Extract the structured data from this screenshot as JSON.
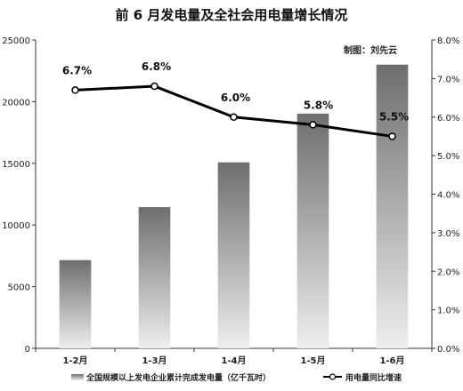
{
  "chart_data": {
    "type": "bar",
    "title": "前 6 月发电量及全社会用电量增长情况",
    "credit": "制图：刘先云",
    "categories": [
      "1-2月",
      "1-3月",
      "1-4月",
      "1-5月",
      "1-6月"
    ],
    "series": [
      {
        "name": "全国规模以上发电企业累计完成发电量（亿千瓦时）",
        "type": "bar",
        "axis": "left",
        "values": [
          7150,
          11450,
          15080,
          19030,
          23000
        ]
      },
      {
        "name": "用电量同比增速",
        "type": "line",
        "axis": "right",
        "values": [
          6.7,
          6.8,
          6.0,
          5.8,
          5.5
        ],
        "labels": [
          "6.7%",
          "6.8%",
          "6.0%",
          "5.8%",
          "5.5%"
        ]
      }
    ],
    "y_left": {
      "ylim": [
        0,
        25000
      ],
      "ticks": [
        "0",
        "5000",
        "10000",
        "15000",
        "20000",
        "25000"
      ]
    },
    "y_right": {
      "ylim": [
        0,
        8
      ],
      "ticks": [
        "0.0%",
        "1.0%",
        "2.0%",
        "3.0%",
        "4.0%",
        "5.0%",
        "6.0%",
        "7.0%",
        "8.0%"
      ]
    },
    "grid": false,
    "legend_position": "bottom",
    "colors": {
      "bar_top": "#6e6e6e",
      "bar_bottom": "#eeeeee",
      "line": "#000000"
    }
  }
}
